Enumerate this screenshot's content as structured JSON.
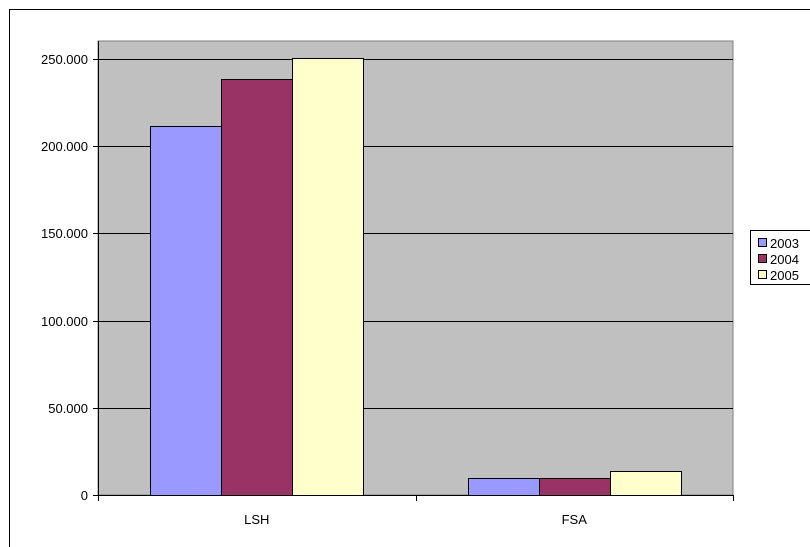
{
  "chart_data": {
    "type": "bar",
    "categories": [
      "LSH",
      "FSA"
    ],
    "series": [
      {
        "name": "2003",
        "values": [
          211500,
          10000
        ]
      },
      {
        "name": "2004",
        "values": [
          238500,
          10000
        ]
      },
      {
        "name": "2005",
        "values": [
          250500,
          13500
        ]
      }
    ],
    "colors": [
      "#9999ff",
      "#993366",
      "#ffffcc"
    ],
    "plot_background": "#c0c0c0",
    "ylim": [
      0,
      250000
    ],
    "yticks": [
      0,
      50000,
      100000,
      150000,
      200000,
      250000
    ],
    "ytick_labels": [
      "0",
      "50.000",
      "100.000",
      "150.000",
      "200.000",
      "250.000"
    ],
    "grid": true,
    "legend_position": "right",
    "title": "",
    "xlabel": "",
    "ylabel": ""
  }
}
